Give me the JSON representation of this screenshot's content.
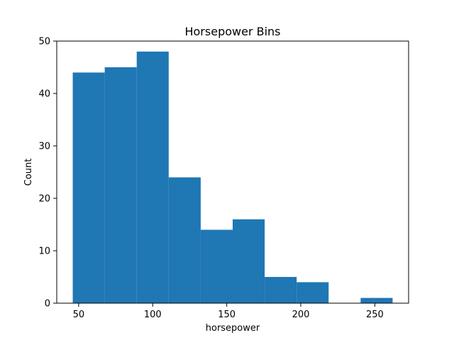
{
  "chart_data": {
    "type": "bar",
    "title": "Horsepower Bins",
    "xlabel": "horsepower",
    "ylabel": "Count",
    "bin_edges": [
      46,
      67.6,
      89.2,
      110.8,
      132.4,
      154,
      175.6,
      197.2,
      218.8,
      240.4,
      262
    ],
    "values": [
      44,
      45,
      48,
      24,
      14,
      16,
      5,
      4,
      0,
      1
    ],
    "xlim": [
      35.2,
      272.8
    ],
    "ylim": [
      0,
      50
    ],
    "xticks": [
      50,
      100,
      150,
      200,
      250
    ],
    "yticks": [
      0,
      10,
      20,
      30,
      40,
      50
    ],
    "grid": false,
    "bar_color": "#1f77b4"
  }
}
